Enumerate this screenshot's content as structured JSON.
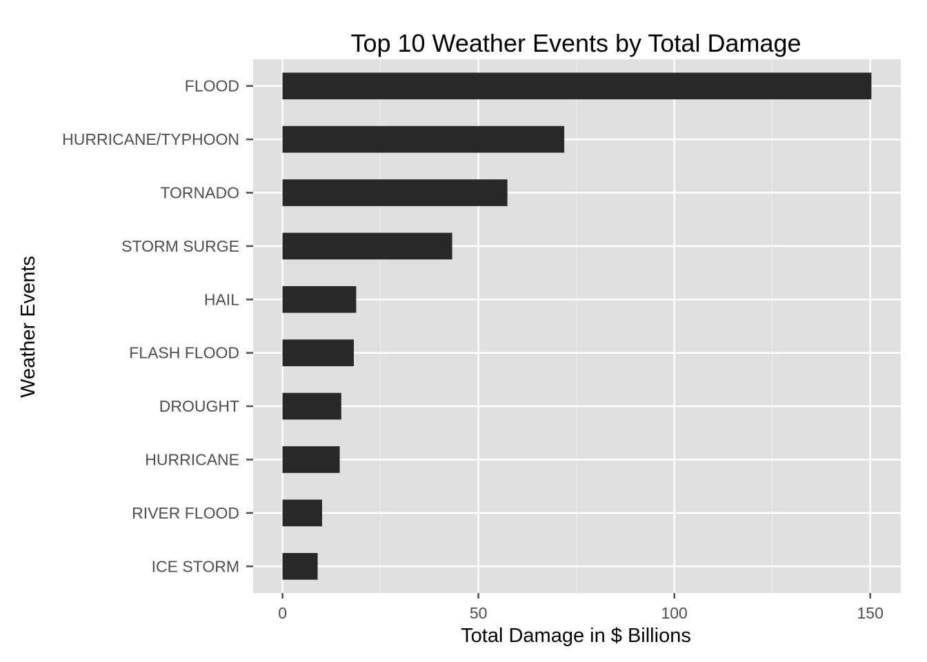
{
  "chart_data": {
    "type": "bar",
    "orientation": "horizontal",
    "title": "Top 10 Weather Events by Total Damage",
    "xlabel": "Total Damage in $ Billions",
    "ylabel": "Weather Events",
    "categories": [
      "FLOOD",
      "HURRICANE/TYPHOON",
      "TORNADO",
      "STORM SURGE",
      "HAIL",
      "FLASH FLOOD",
      "DROUGHT",
      "HURRICANE",
      "RIVER FLOOD",
      "ICE STORM"
    ],
    "values": [
      150.3,
      71.9,
      57.4,
      43.3,
      18.8,
      18.2,
      15.0,
      14.6,
      10.1,
      8.97
    ],
    "xlim": [
      -7.5,
      157.8
    ],
    "xticks": [
      "0",
      "50",
      "100",
      "150"
    ],
    "xtick_values": [
      0,
      50,
      100,
      150
    ],
    "grid": true,
    "bar_color": "#282828",
    "panel_color": "#e0e0e0",
    "grid_color": "#ffffff"
  }
}
